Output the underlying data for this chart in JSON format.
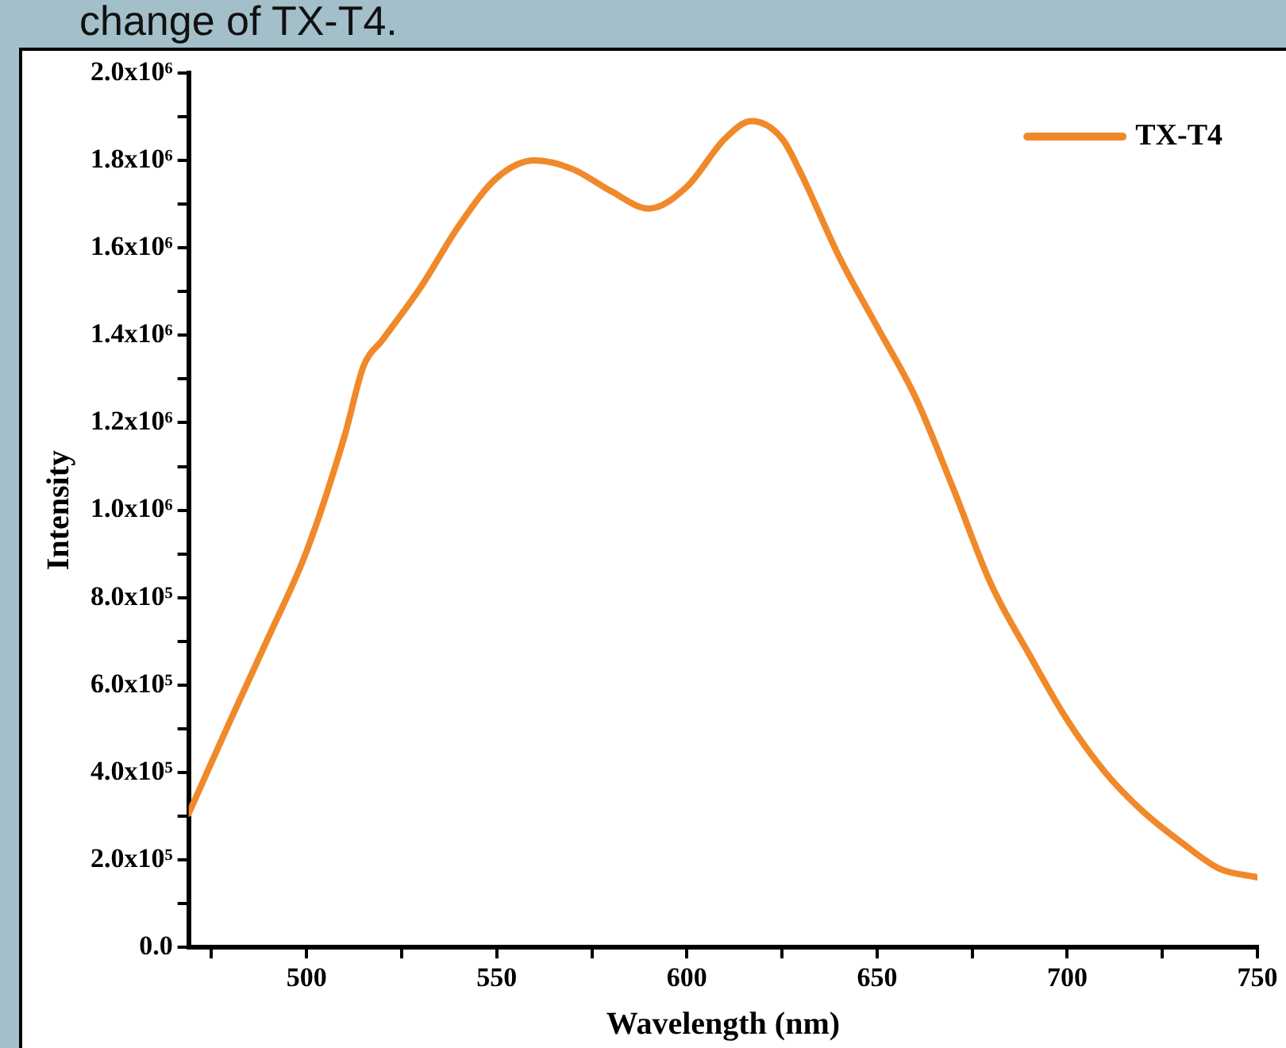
{
  "chart_data": {
    "type": "line",
    "title": "change of TX-T4.",
    "xlabel": "Wavelength (nm)",
    "ylabel": "Intensity",
    "x": [
      469,
      480,
      490,
      500,
      510,
      515,
      520,
      530,
      540,
      550,
      560,
      570,
      580,
      590,
      600,
      610,
      617,
      625,
      630,
      640,
      650,
      660,
      670,
      680,
      690,
      700,
      710,
      720,
      730,
      740,
      750
    ],
    "series": [
      {
        "name": "TX-T4",
        "color": "#f0892a",
        "values": [
          306000,
          520000,
          710000,
          906000,
          1170000,
          1330000,
          1390000,
          1510000,
          1650000,
          1760000,
          1800000,
          1780000,
          1730000,
          1690000,
          1740000,
          1850000,
          1890000,
          1850000,
          1770000,
          1580000,
          1420000,
          1260000,
          1050000,
          830000,
          670000,
          520000,
          400000,
          310000,
          240000,
          180000,
          160000
        ]
      }
    ],
    "xlim": [
      469,
      750
    ],
    "xticks": [
      {
        "value": 475,
        "label": null
      },
      500,
      {
        "value": 525,
        "label": null
      },
      550,
      {
        "value": 575,
        "label": null
      },
      600,
      {
        "value": 625,
        "label": null
      },
      650,
      {
        "value": 675,
        "label": null
      },
      700,
      {
        "value": 725,
        "label": null
      },
      750
    ],
    "ylim": [
      0,
      2000000
    ],
    "yticks": [
      {
        "value": 0,
        "label": "0.0"
      },
      {
        "value": 100000,
        "label": null
      },
      {
        "value": 200000,
        "label": "2.0x10⁵"
      },
      {
        "value": 300000,
        "label": null
      },
      {
        "value": 400000,
        "label": "4.0x10⁵"
      },
      {
        "value": 500000,
        "label": null
      },
      {
        "value": 600000,
        "label": "6.0x10⁵"
      },
      {
        "value": 700000,
        "label": null
      },
      {
        "value": 800000,
        "label": "8.0x10⁵"
      },
      {
        "value": 900000,
        "label": null
      },
      {
        "value": 1000000,
        "label": "1.0x10⁶"
      },
      {
        "value": 1100000,
        "label": null
      },
      {
        "value": 1200000,
        "label": "1.2x10⁶"
      },
      {
        "value": 1300000,
        "label": null
      },
      {
        "value": 1400000,
        "label": "1.4x10⁶"
      },
      {
        "value": 1500000,
        "label": null
      },
      {
        "value": 1600000,
        "label": "1.6x10⁶"
      },
      {
        "value": 1700000,
        "label": null
      },
      {
        "value": 1800000,
        "label": "1.8x10⁶"
      },
      {
        "value": 1900000,
        "label": null
      },
      {
        "value": 2000000,
        "label": "2.0x10⁶"
      }
    ],
    "legend": "top right",
    "marker": "none",
    "line_style": "solid",
    "grid": false
  }
}
